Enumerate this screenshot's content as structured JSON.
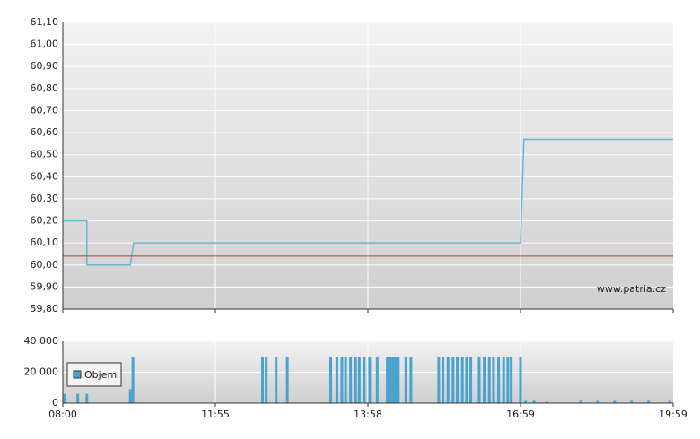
{
  "chart_data": [
    {
      "type": "line",
      "annotation": "www.patria.cz",
      "ylim": [
        59.8,
        61.1
      ],
      "yticks": [
        {
          "value": 59.8,
          "label": "59,80"
        },
        {
          "value": 59.9,
          "label": "59,90"
        },
        {
          "value": 60.0,
          "label": "60,00"
        },
        {
          "value": 60.1,
          "label": "60,10"
        },
        {
          "value": 60.2,
          "label": "60,20"
        },
        {
          "value": 60.3,
          "label": "60,30"
        },
        {
          "value": 60.4,
          "label": "60,40"
        },
        {
          "value": 60.5,
          "label": "60,50"
        },
        {
          "value": 60.6,
          "label": "60,60"
        },
        {
          "value": 60.7,
          "label": "60,70"
        },
        {
          "value": 60.8,
          "label": "60,80"
        },
        {
          "value": 60.9,
          "label": "60,90"
        },
        {
          "value": 61.0,
          "label": "61,00"
        },
        {
          "value": 61.1,
          "label": "61,10"
        }
      ],
      "reference_line": 60.04,
      "reference_color": "#c0392b",
      "color": "#6bb6d6",
      "grid": true,
      "x": [
        "08:00",
        "08:37",
        "08:37",
        "09:44",
        "09:46",
        "09:49",
        "16:59",
        "17:03",
        "19:59"
      ],
      "values": [
        60.2,
        60.2,
        60.0,
        60.0,
        60.04,
        60.1,
        60.1,
        60.57,
        60.57
      ]
    },
    {
      "type": "bar",
      "grid": true,
      "xlim": [
        "08:00",
        "19:59"
      ],
      "xticks": [
        "08:00",
        "11:55",
        "13:58",
        "16:59",
        "19:59"
      ],
      "ylim": [
        0,
        40000
      ],
      "yticks": [
        0,
        {
          "value": 20000,
          "label": "20 000"
        },
        {
          "value": 40000,
          "label": "40 000"
        }
      ],
      "series": [
        {
          "name": "Objem",
          "color": "#4aa3cf",
          "x": [
            "08:03",
            "08:23",
            "08:37",
            "09:44",
            "09:48",
            "12:33",
            "12:36",
            "12:44",
            "12:53",
            "13:28",
            "13:33",
            "13:37",
            "13:40",
            "13:44",
            "13:48",
            "13:51",
            "13:55",
            "14:00",
            "14:09",
            "14:21",
            "14:25",
            "14:28",
            "14:31",
            "14:34",
            "14:43",
            "14:49",
            "15:22",
            "15:27",
            "15:33",
            "15:39",
            "15:44",
            "15:50",
            "15:55",
            "16:00",
            "16:10",
            "16:16",
            "16:22",
            "16:27",
            "16:33",
            "16:39",
            "16:44",
            "16:48",
            "16:59",
            "17:05",
            "17:15",
            "17:30",
            "18:10",
            "18:30",
            "18:50",
            "19:10",
            "19:30",
            "19:55"
          ],
          "values": [
            6000,
            6000,
            6000,
            9000,
            30000,
            30000,
            30000,
            30000,
            30000,
            30000,
            30000,
            30000,
            30000,
            30000,
            30000,
            30000,
            30000,
            30000,
            30000,
            30000,
            30000,
            30000,
            30000,
            30000,
            30000,
            30000,
            30000,
            30000,
            30000,
            30000,
            30000,
            30000,
            30000,
            30000,
            30000,
            30000,
            30000,
            30000,
            30000,
            30000,
            30000,
            30000,
            30000,
            1500,
            1500,
            1000,
            1500,
            1500,
            1500,
            1500,
            1500,
            1500
          ]
        }
      ]
    }
  ]
}
